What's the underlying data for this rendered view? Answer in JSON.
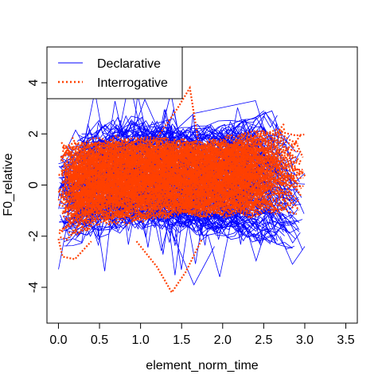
{
  "chart_data": {
    "type": "line",
    "title": "",
    "xlabel": "element_norm_time",
    "ylabel": "F0_relative",
    "xlim": [
      -0.14,
      3.64
    ],
    "ylim": [
      -5.4,
      5.4
    ],
    "xticks": [
      "0.0",
      "0.5",
      "1.0",
      "1.5",
      "2.0",
      "2.5",
      "3.0",
      "3.5"
    ],
    "xtick_values": [
      0,
      0.5,
      1.0,
      1.5,
      2.0,
      2.5,
      3.0,
      3.5
    ],
    "yticks": [
      "-4",
      "-2",
      "0",
      "2",
      "4"
    ],
    "ytick_values": [
      -4,
      -2,
      0,
      2,
      4
    ],
    "grid": false,
    "legend_position": "top-left",
    "series": [
      {
        "name": "Declarative",
        "color": "#0000FF",
        "line_style": "solid",
        "approx_band": {
          "x": [
            0.0,
            0.5,
            1.0,
            1.5,
            2.0,
            2.5,
            3.0
          ],
          "upper": [
            1.5,
            2.5,
            2.9,
            2.6,
            2.6,
            2.8,
            1.5
          ],
          "lower": [
            -2.4,
            -2.1,
            -2.0,
            -2.2,
            -2.3,
            -2.5,
            -3.1
          ]
        },
        "extremes": {
          "max": 3.3,
          "min": -3.9
        }
      },
      {
        "name": "Interrogative",
        "color": "#FF4000",
        "line_style": "dotted",
        "approx_band": {
          "x": [
            0.0,
            0.5,
            1.0,
            1.5,
            2.0,
            2.5,
            3.0
          ],
          "upper": [
            1.5,
            1.8,
            2.0,
            2.0,
            2.0,
            2.3,
            2.1
          ],
          "lower": [
            -2.0,
            -1.5,
            -1.5,
            -1.4,
            -1.4,
            -1.2,
            -1.2
          ]
        },
        "extremes": {
          "max": 3.8,
          "min": -4.2
        }
      }
    ]
  }
}
